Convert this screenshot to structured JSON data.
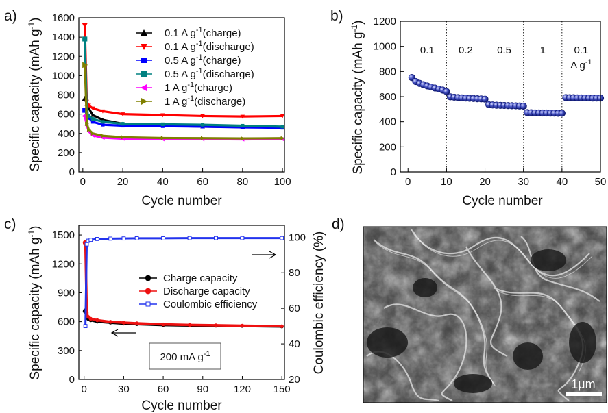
{
  "panels": {
    "a": {
      "label": "a)"
    },
    "b": {
      "label": "b)"
    },
    "c": {
      "label": "c)"
    },
    "d": {
      "label": "d)",
      "scale_bar": "1μm"
    }
  },
  "chart_data": [
    {
      "id": "a",
      "type": "line",
      "title": "",
      "xlabel": "Cycle number",
      "ylabel": "Specific capacity (mAh g",
      "ylabel_sup": "-1",
      "ylabel_close": ")",
      "xlim": [
        -2,
        101
      ],
      "ylim": [
        0,
        1600
      ],
      "xticks": [
        0,
        20,
        40,
        60,
        80,
        100
      ],
      "yticks": [
        0,
        200,
        400,
        600,
        800,
        1000,
        1200,
        1400,
        1600
      ],
      "legend_position": "top-right",
      "series": [
        {
          "name": "0.1 A g",
          "sup": "-1",
          "suffix": "(charge)",
          "color": "#000000",
          "marker": "triangle-up",
          "x": [
            1,
            2,
            3,
            5,
            10,
            20,
            40,
            60,
            80,
            100
          ],
          "values": [
            760,
            705,
            660,
            590,
            540,
            500,
            480,
            470,
            465,
            460
          ]
        },
        {
          "name": "0.1 A g",
          "sup": "-1",
          "suffix": "(discharge)",
          "color": "#ff0000",
          "marker": "triangle-down",
          "x": [
            1,
            2,
            3,
            5,
            10,
            20,
            40,
            60,
            80,
            100
          ],
          "values": [
            1525,
            730,
            690,
            660,
            630,
            600,
            590,
            580,
            575,
            580
          ]
        },
        {
          "name": "0.5 A g",
          "sup": "-1",
          "suffix": "(charge)",
          "color": "#0000ff",
          "marker": "square",
          "x": [
            1,
            2,
            3,
            5,
            10,
            20,
            40,
            60,
            80,
            100
          ],
          "values": [
            640,
            600,
            560,
            520,
            490,
            480,
            475,
            470,
            462,
            458
          ]
        },
        {
          "name": "0.5 A g",
          "sup": "-1",
          "suffix": "(discharge)",
          "color": "#008080",
          "marker": "square",
          "x": [
            1,
            2,
            3,
            5,
            10,
            20,
            40,
            60,
            80,
            100
          ],
          "values": [
            1380,
            620,
            580,
            550,
            520,
            500,
            495,
            490,
            480,
            470
          ]
        },
        {
          "name": "1 A g",
          "sup": "-1",
          "suffix": "(charge)",
          "color": "#ff00ff",
          "marker": "triangle-left",
          "x": [
            1,
            2,
            3,
            5,
            10,
            20,
            40,
            60,
            80,
            100
          ],
          "values": [
            580,
            480,
            420,
            380,
            355,
            345,
            340,
            340,
            338,
            340
          ]
        },
        {
          "name": "1 A g",
          "sup": "-1",
          "suffix": "(discharge)",
          "color": "#808000",
          "marker": "triangle-right",
          "x": [
            1,
            2,
            3,
            5,
            10,
            20,
            40,
            60,
            80,
            100
          ],
          "values": [
            1110,
            500,
            440,
            400,
            375,
            360,
            352,
            350,
            348,
            350
          ]
        }
      ]
    },
    {
      "id": "b",
      "type": "scatter",
      "title": "",
      "xlabel": "Cycle number",
      "ylabel": "Specific capacity (mAh g",
      "ylabel_sup": "-1",
      "ylabel_close": ")",
      "xlim": [
        -2,
        50
      ],
      "ylim": [
        0,
        1200
      ],
      "xticks": [
        0,
        10,
        20,
        30,
        40,
        50
      ],
      "yticks": [
        0,
        200,
        400,
        600,
        800,
        1000,
        1200
      ],
      "separators": [
        10,
        20,
        30,
        40
      ],
      "segments": [
        {
          "label": "0.1",
          "x": 5
        },
        {
          "label": "0.2",
          "x": 15
        },
        {
          "label": "0.5",
          "x": 25
        },
        {
          "label": "1",
          "x": 35
        },
        {
          "label": "0.1",
          "x": 45,
          "second_line": "A g",
          "sup": "-1"
        }
      ],
      "series": [
        {
          "name": "",
          "color": "#1f2a9e",
          "x": [
            1,
            2,
            3,
            4,
            5,
            6,
            7,
            8,
            9,
            10,
            11,
            12,
            13,
            14,
            15,
            16,
            17,
            18,
            19,
            20,
            21,
            22,
            23,
            24,
            25,
            26,
            27,
            28,
            29,
            30,
            31,
            32,
            33,
            34,
            35,
            36,
            37,
            38,
            39,
            40,
            41,
            42,
            43,
            44,
            45,
            46,
            47,
            48,
            49,
            50
          ],
          "values": [
            752,
            720,
            705,
            695,
            685,
            676,
            668,
            660,
            652,
            640,
            598,
            595,
            592,
            590,
            588,
            586,
            585,
            583,
            582,
            580,
            535,
            533,
            531,
            530,
            529,
            528,
            527,
            526,
            525,
            524,
            472,
            471,
            470,
            470,
            469,
            469,
            468,
            468,
            467,
            467,
            592,
            591,
            591,
            590,
            590,
            589,
            589,
            588,
            588,
            588
          ]
        }
      ]
    },
    {
      "id": "c",
      "type": "line",
      "title": "",
      "xlabel": "Cycle number",
      "ylabel": "Specific capacity (mAh g",
      "ylabel_sup": "-1",
      "ylabel_close": ")",
      "y2label": "Coulombic efficiency (%)",
      "xlim": [
        -4,
        152
      ],
      "ylim": [
        0,
        1600
      ],
      "y2lim": [
        20,
        106.67
      ],
      "xticks": [
        0,
        30,
        60,
        90,
        120,
        150
      ],
      "yticks": [
        0,
        300,
        600,
        900,
        1200,
        1500
      ],
      "y2ticks": [
        20,
        40,
        60,
        80,
        100
      ],
      "legend_position": "center-right",
      "note": "200 mA g",
      "note_sup": "-1",
      "series": [
        {
          "name": "Charge capacity",
          "color": "#000000",
          "marker": "circle",
          "axis": "left",
          "x": [
            1,
            2,
            3,
            5,
            10,
            20,
            30,
            40,
            60,
            80,
            100,
            120,
            150
          ],
          "values": [
            710,
            660,
            630,
            615,
            600,
            590,
            580,
            575,
            565,
            560,
            558,
            555,
            550
          ]
        },
        {
          "name": "Discharge capacity",
          "color": "#ee1111",
          "marker": "circle",
          "axis": "left",
          "x": [
            1,
            2,
            3,
            5,
            10,
            20,
            30,
            40,
            60,
            80,
            100,
            120,
            150
          ],
          "values": [
            1420,
            690,
            650,
            630,
            615,
            598,
            590,
            583,
            572,
            566,
            562,
            558,
            552
          ]
        },
        {
          "name": "Coulombic efficiency",
          "color": "#2233ee",
          "marker": "square-open",
          "axis": "right",
          "x": [
            1,
            2,
            3,
            5,
            10,
            20,
            30,
            40,
            60,
            80,
            100,
            120,
            150
          ],
          "values": [
            50,
            96,
            98,
            98.5,
            99,
            99.2,
            99.3,
            99.4,
            99.4,
            99.5,
            99.5,
            99.5,
            99.5
          ]
        }
      ]
    }
  ]
}
